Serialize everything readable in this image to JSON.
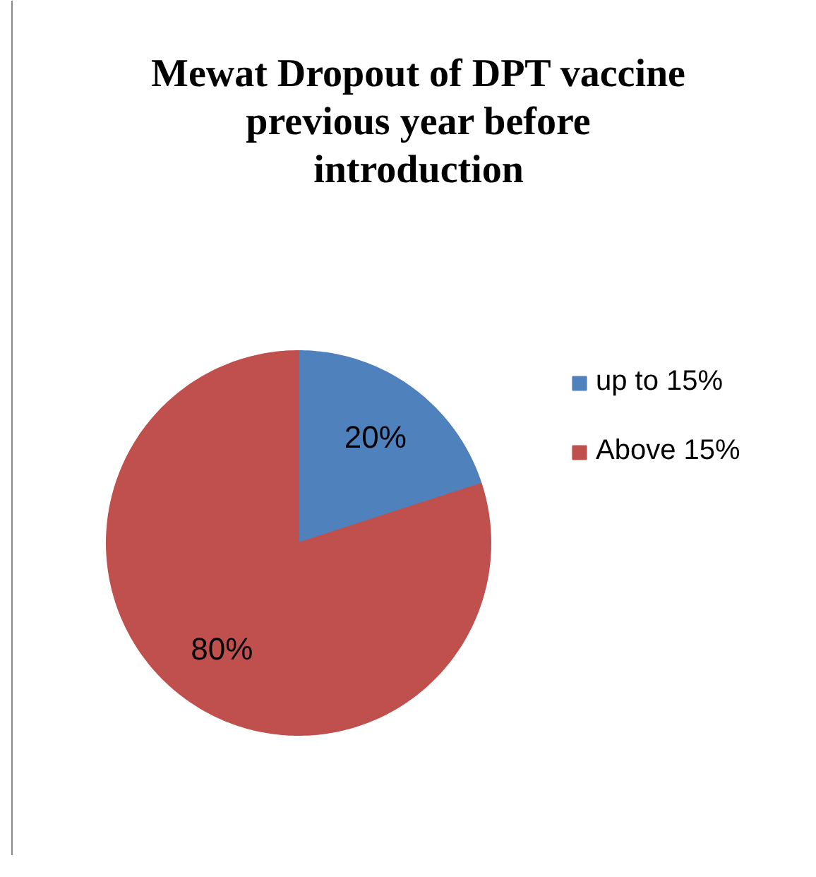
{
  "chart_data": {
    "type": "pie",
    "title": "Mewat Dropout of DPT vaccine previous year before introduction",
    "categories": [
      "up to 15%",
      "Above 15%"
    ],
    "values": [
      20,
      80
    ],
    "colors": [
      "#4f81bd",
      "#c0504d"
    ],
    "value_labels": [
      "20%",
      "80%"
    ],
    "legend": "right"
  }
}
